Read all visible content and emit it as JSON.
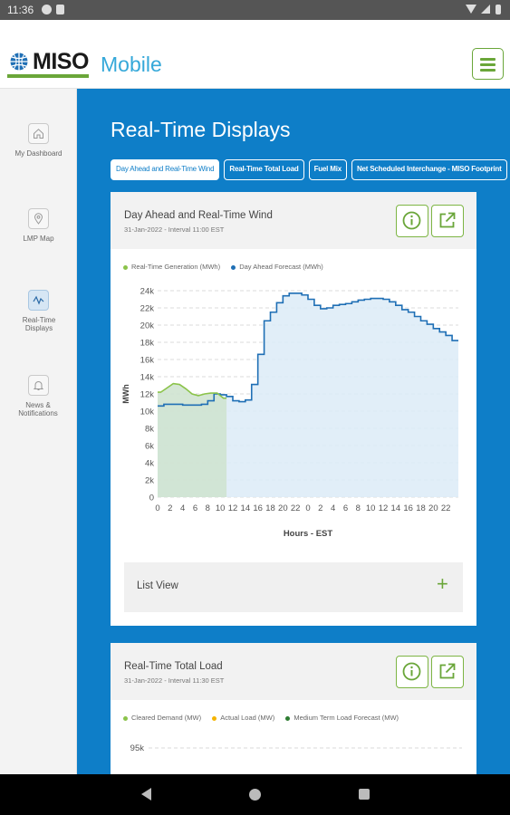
{
  "status_bar": {
    "time": "11:36"
  },
  "header": {
    "logo_text": "MISO",
    "title": "Mobile"
  },
  "sidebar": {
    "items": [
      {
        "label": "My Dashboard",
        "icon": "home-icon"
      },
      {
        "label": "LMP Map",
        "icon": "map-pin-icon"
      },
      {
        "label": "Real-Time Displays",
        "icon": "pulse-icon",
        "active": true
      },
      {
        "label": "News & Notifications",
        "icon": "bell-icon"
      }
    ]
  },
  "main": {
    "title": "Real-Time Displays",
    "tabs": [
      {
        "label": "Day Ahead and Real-Time Wind",
        "active": true
      },
      {
        "label": "Real-Time Total Load"
      },
      {
        "label": "Fuel Mix"
      },
      {
        "label": "Net Scheduled Interchange - MISO Footprint"
      }
    ]
  },
  "cards": [
    {
      "title": "Day Ahead and Real-Time Wind",
      "subtitle": "31-Jan-2022 - Interval 11:00 EST",
      "legend": [
        "Real-Time Generation (MWh)",
        "Day Ahead Forecast (MWh)"
      ],
      "list_view_label": "List View"
    },
    {
      "title": "Real-Time Total Load",
      "subtitle": "31-Jan-2022 - Interval 11:30 EST",
      "legend": [
        "Cleared Demand (MW)",
        "Actual Load (MW)",
        "Medium Term Load Forecast (MW)"
      ],
      "first_tick": "95k"
    }
  ],
  "colors": {
    "accent_blue": "#0e7ec8",
    "brand_green": "#6aa639",
    "realtime_series": "#8bc34a",
    "forecast_series": "#1f6fb5",
    "actual_load": "#f5b400",
    "medium_term": "#2e7d32"
  },
  "chart_data": {
    "type": "line",
    "ylabel": "MWh",
    "xlabel": "Hours - EST",
    "y_ticks": [
      "0",
      "2k",
      "4k",
      "6k",
      "8k",
      "10k",
      "12k",
      "14k",
      "16k",
      "18k",
      "20k",
      "22k",
      "24k"
    ],
    "ylim": [
      0,
      24000
    ],
    "x_ticks": [
      "0",
      "2",
      "4",
      "6",
      "8",
      "10",
      "12",
      "14",
      "16",
      "18",
      "20",
      "22",
      "0",
      "2",
      "4",
      "6",
      "8",
      "10",
      "12",
      "14",
      "16",
      "18",
      "20",
      "22"
    ],
    "grid": true,
    "series": [
      {
        "name": "Real-Time Generation (MWh)",
        "color": "#8bc34a",
        "x": [
          1,
          2,
          3,
          4,
          5,
          6,
          7,
          8,
          9,
          10,
          11
        ],
        "values": [
          12200,
          12700,
          13200,
          13100,
          12600,
          12000,
          11800,
          12000,
          12100,
          12100,
          11500
        ]
      },
      {
        "name": "Day Ahead Forecast (MWh)",
        "color": "#1f6fb5",
        "x": [
          1,
          2,
          3,
          4,
          5,
          6,
          7,
          8,
          9,
          10,
          11,
          12,
          13,
          14,
          15,
          16,
          17,
          18,
          19,
          20,
          21,
          22,
          23,
          24,
          25,
          26,
          27,
          28,
          29,
          30,
          31,
          32,
          33,
          34,
          35,
          36,
          37,
          38,
          39,
          40,
          41,
          42,
          43,
          44,
          45,
          46,
          47,
          48
        ],
        "values": [
          10600,
          10800,
          10800,
          10800,
          10700,
          10700,
          10700,
          10800,
          11200,
          12000,
          11900,
          11700,
          11200,
          11100,
          11300,
          13100,
          16600,
          20500,
          21500,
          22600,
          23400,
          23700,
          23700,
          23500,
          23000,
          22300,
          21900,
          22000,
          22300,
          22400,
          22500,
          22700,
          22900,
          23000,
          23100,
          23100,
          23000,
          22700,
          22300,
          21800,
          21500,
          21000,
          20500,
          20100,
          19600,
          19200,
          18800,
          18200
        ]
      }
    ],
    "realtime_shaded_range": [
      1,
      11
    ]
  }
}
